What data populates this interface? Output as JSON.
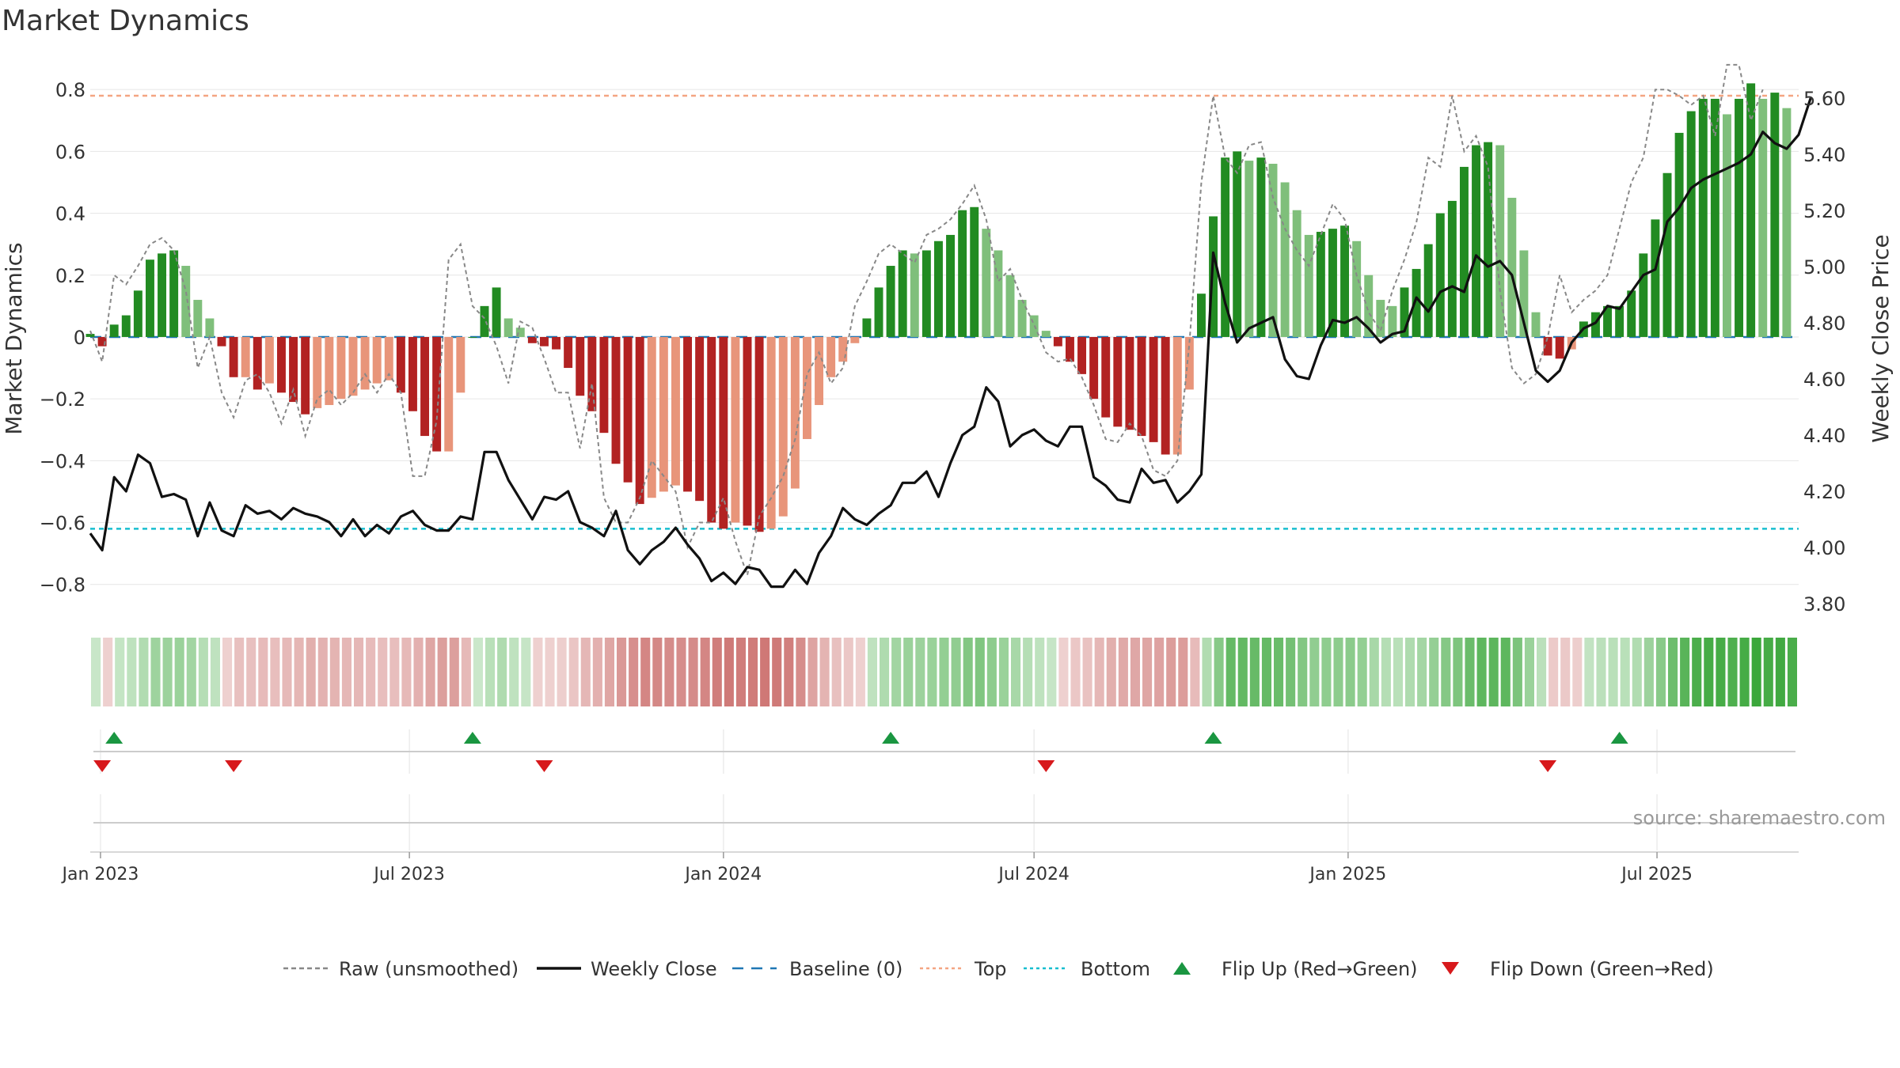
{
  "title": "Market Dynamics",
  "source_text": "source: sharemaestro.com",
  "chart_data": {
    "type": "bar",
    "title": "Market Dynamics",
    "ylabel_left": "Market Dynamics",
    "ylabel_right": "Weekly Close Price",
    "x_start": "2022-12-26",
    "x_end": "2025-09-22",
    "y_left_lim": [
      -0.88,
      0.89
    ],
    "y_right_lim": [
      3.78,
      5.73
    ],
    "y_left_ticks": [
      "−0.8",
      "−0.6",
      "−0.4",
      "−0.2",
      "0",
      "0.2",
      "0.4",
      "0.6",
      "0.8"
    ],
    "y_left_tick_values": [
      -0.8,
      -0.6,
      -0.4,
      -0.2,
      0,
      0.2,
      0.4,
      0.6,
      0.8
    ],
    "y_right_ticks": [
      "3.80",
      "4.00",
      "4.20",
      "4.40",
      "4.60",
      "4.80",
      "5.00",
      "5.20",
      "5.40",
      "5.60"
    ],
    "y_right_tick_values": [
      3.8,
      4.0,
      4.2,
      4.4,
      4.6,
      4.8,
      5.0,
      5.2,
      5.4,
      5.6
    ],
    "x_ticks": [
      {
        "date": "2023-01-01",
        "label": "Jan 2023"
      },
      {
        "date": "2023-07-01",
        "label": "Jul 2023"
      },
      {
        "date": "2024-01-01",
        "label": "Jan 2024"
      },
      {
        "date": "2024-07-01",
        "label": "Jul 2024"
      },
      {
        "date": "2025-01-01",
        "label": "Jan 2025"
      },
      {
        "date": "2025-07-01",
        "label": "Jul 2025"
      }
    ],
    "top_level": 0.78,
    "bottom_level": -0.62,
    "baseline": 0,
    "market_dynamics": [
      0.01,
      -0.03,
      0.04,
      0.07,
      0.15,
      0.25,
      0.27,
      0.28,
      0.23,
      0.12,
      0.06,
      -0.03,
      -0.13,
      -0.13,
      -0.17,
      -0.15,
      -0.18,
      -0.21,
      -0.25,
      -0.23,
      -0.22,
      -0.2,
      -0.19,
      -0.17,
      -0.15,
      -0.14,
      -0.18,
      -0.24,
      -0.32,
      -0.37,
      -0.37,
      -0.18,
      0.0,
      0.1,
      0.16,
      0.06,
      0.03,
      -0.02,
      -0.03,
      -0.04,
      -0.1,
      -0.19,
      -0.24,
      -0.31,
      -0.41,
      -0.47,
      -0.54,
      -0.52,
      -0.5,
      -0.48,
      -0.5,
      -0.53,
      -0.6,
      -0.62,
      -0.6,
      -0.61,
      -0.63,
      -0.62,
      -0.58,
      -0.49,
      -0.33,
      -0.22,
      -0.13,
      -0.08,
      -0.02,
      0.06,
      0.16,
      0.23,
      0.28,
      0.27,
      0.28,
      0.31,
      0.33,
      0.41,
      0.42,
      0.35,
      0.28,
      0.2,
      0.12,
      0.07,
      0.02,
      -0.03,
      -0.08,
      -0.12,
      -0.2,
      -0.26,
      -0.29,
      -0.3,
      -0.32,
      -0.34,
      -0.38,
      -0.38,
      -0.17,
      0.14,
      0.39,
      0.58,
      0.6,
      0.57,
      0.58,
      0.56,
      0.5,
      0.41,
      0.33,
      0.34,
      0.35,
      0.36,
      0.31,
      0.2,
      0.12,
      0.1,
      0.16,
      0.22,
      0.3,
      0.4,
      0.44,
      0.55,
      0.62,
      0.63,
      0.62,
      0.45,
      0.28,
      0.08,
      -0.06,
      -0.07,
      -0.04,
      0.05,
      0.08,
      0.1,
      0.1,
      0.15,
      0.27,
      0.38,
      0.53,
      0.66,
      0.73,
      0.77,
      0.77,
      0.72,
      0.77,
      0.82,
      0.77,
      0.79,
      0.74
    ],
    "raw_unsmoothed": [
      0.02,
      -0.08,
      0.2,
      0.17,
      0.23,
      0.3,
      0.32,
      0.28,
      0.15,
      -0.1,
      0.0,
      -0.18,
      -0.26,
      -0.14,
      -0.12,
      -0.18,
      -0.28,
      -0.17,
      -0.32,
      -0.2,
      -0.17,
      -0.22,
      -0.18,
      -0.12,
      -0.18,
      -0.12,
      -0.18,
      -0.45,
      -0.45,
      -0.27,
      0.25,
      0.3,
      0.1,
      0.06,
      -0.03,
      -0.15,
      0.05,
      0.03,
      -0.07,
      -0.18,
      -0.18,
      -0.36,
      -0.15,
      -0.52,
      -0.6,
      -0.6,
      -0.52,
      -0.4,
      -0.45,
      -0.5,
      -0.68,
      -0.6,
      -0.6,
      -0.52,
      -0.66,
      -0.77,
      -0.58,
      -0.52,
      -0.45,
      -0.33,
      -0.12,
      -0.05,
      -0.15,
      -0.1,
      0.1,
      0.18,
      0.27,
      0.3,
      0.27,
      0.24,
      0.33,
      0.35,
      0.38,
      0.43,
      0.49,
      0.38,
      0.18,
      0.22,
      0.12,
      0.04,
      -0.05,
      -0.08,
      -0.07,
      -0.13,
      -0.22,
      -0.33,
      -0.34,
      -0.28,
      -0.32,
      -0.43,
      -0.45,
      -0.4,
      -0.02,
      0.5,
      0.78,
      0.58,
      0.53,
      0.62,
      0.63,
      0.45,
      0.35,
      0.28,
      0.23,
      0.33,
      0.43,
      0.38,
      0.2,
      0.08,
      0.02,
      0.15,
      0.25,
      0.37,
      0.58,
      0.55,
      0.78,
      0.6,
      0.65,
      0.55,
      0.15,
      -0.1,
      -0.15,
      -0.12,
      0.0,
      0.2,
      0.08,
      0.12,
      0.15,
      0.2,
      0.35,
      0.5,
      0.58,
      0.8,
      0.8,
      0.78,
      0.75,
      0.78,
      0.65,
      0.88,
      0.88,
      0.7,
      0.8
    ],
    "weekly_close": [
      4.05,
      3.99,
      4.25,
      4.2,
      4.33,
      4.3,
      4.18,
      4.19,
      4.17,
      4.04,
      4.16,
      4.06,
      4.04,
      4.15,
      4.12,
      4.13,
      4.1,
      4.14,
      4.12,
      4.11,
      4.09,
      4.04,
      4.1,
      4.04,
      4.08,
      4.05,
      4.11,
      4.13,
      4.08,
      4.06,
      4.06,
      4.11,
      4.1,
      4.34,
      4.34,
      4.24,
      4.17,
      4.1,
      4.18,
      4.17,
      4.2,
      4.09,
      4.07,
      4.04,
      4.13,
      3.99,
      3.94,
      3.99,
      4.02,
      4.07,
      4.01,
      3.96,
      3.88,
      3.91,
      3.87,
      3.93,
      3.92,
      3.86,
      3.86,
      3.92,
      3.87,
      3.98,
      4.04,
      4.14,
      4.1,
      4.08,
      4.12,
      4.15,
      4.23,
      4.23,
      4.27,
      4.18,
      4.3,
      4.4,
      4.43,
      4.57,
      4.52,
      4.36,
      4.4,
      4.42,
      4.38,
      4.36,
      4.43,
      4.43,
      4.25,
      4.22,
      4.17,
      4.16,
      4.28,
      4.23,
      4.24,
      4.16,
      4.2,
      4.26,
      5.05,
      4.87,
      4.73,
      4.78,
      4.8,
      4.82,
      4.67,
      4.61,
      4.6,
      4.72,
      4.81,
      4.8,
      4.82,
      4.78,
      4.73,
      4.76,
      4.77,
      4.89,
      4.84,
      4.91,
      4.93,
      4.91,
      5.04,
      5.0,
      5.02,
      4.97,
      4.8,
      4.63,
      4.59,
      4.63,
      4.73,
      4.78,
      4.8,
      4.86,
      4.85,
      4.91,
      4.97,
      4.99,
      5.16,
      5.21,
      5.28,
      5.31,
      5.33,
      5.35,
      5.37,
      5.4,
      5.48,
      5.44,
      5.42,
      5.47,
      5.6
    ],
    "flip_up": [
      "2023-01-09",
      "2023-08-07",
      "2024-04-08",
      "2024-10-14",
      "2025-06-09"
    ],
    "flip_down": [
      "2023-01-02",
      "2023-03-20",
      "2023-09-18",
      "2024-07-08",
      "2025-04-28"
    ],
    "legend": [
      {
        "label": "Raw (unsmoothed)",
        "style": "dashed",
        "color": "#888888"
      },
      {
        "label": "Weekly Close",
        "style": "solid",
        "color": "#111111"
      },
      {
        "label": "Baseline (0)",
        "style": "dashed",
        "color": "#1f77b4"
      },
      {
        "label": "Top",
        "style": "dotted",
        "color": "#f4a582"
      },
      {
        "label": "Bottom",
        "style": "dotted",
        "color": "#17becf"
      },
      {
        "label": "Flip Up (Red→Green)",
        "style": "triangle-up",
        "color": "#1a9641"
      },
      {
        "label": "Flip Down (Green→Red)",
        "style": "triangle-down",
        "color": "#d7191c"
      }
    ],
    "colors": {
      "strong_green": "#228b22",
      "light_green": "#7fbf7b",
      "strong_red": "#b22222",
      "light_red": "#e8957a",
      "heat_green": "#2ca02c",
      "heat_red": "#c0504d"
    }
  }
}
